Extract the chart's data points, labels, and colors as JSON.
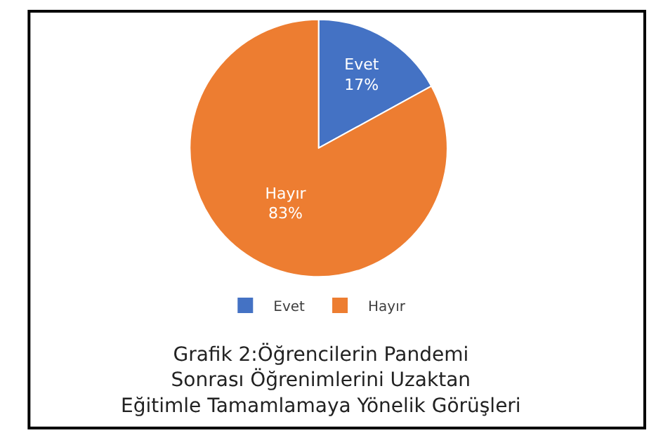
{
  "chart_data": {
    "type": "pie",
    "title": "Grafik 2:Öğrencilerin Pandemi\nSonrası Öğrenimlerini Uzaktan\nEğitimle Tamamlamaya Yönelik Görüşleri",
    "categories": [
      "Evet",
      "Hayır"
    ],
    "values": [
      17,
      83
    ],
    "colors": [
      "#4472c4",
      "#ed7d31"
    ],
    "value_labels": [
      "17%",
      "83%"
    ],
    "legend": "bottom"
  }
}
